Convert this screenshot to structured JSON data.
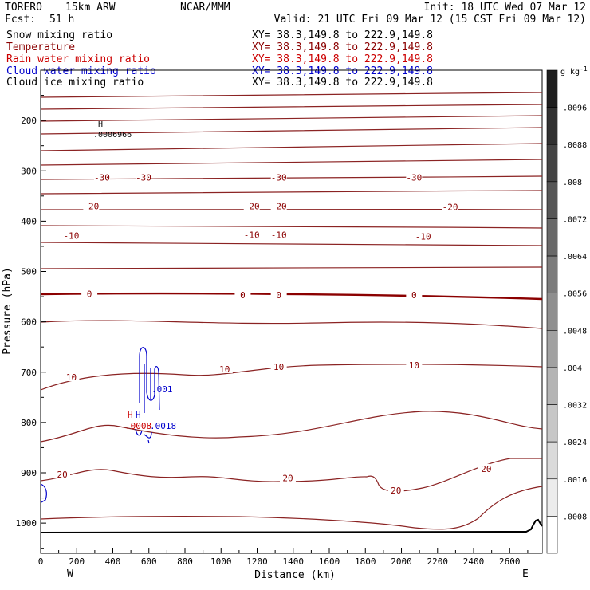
{
  "header": {
    "model": "TORERO",
    "config": "15km ARW",
    "center": "NCAR/MMM",
    "init": "Init: 18 UTC Wed 07 Mar 12",
    "fcst_label": "Fcst:",
    "fcst_value": "51 h",
    "valid": "Valid: 21 UTC Fri 09 Mar 12 (15 CST Fri 09 Mar 12)"
  },
  "fields": [
    {
      "name": "Snow mixing ratio",
      "xy": "XY=  38.3,149.8 to 222.9,149.8",
      "color": "#000000"
    },
    {
      "name": "Temperature",
      "xy": "XY=  38.3,149.8 to 222.9,149.8",
      "color": "#8b0000"
    },
    {
      "name": "Rain water mixing ratio",
      "xy": "XY=  38.3,149.8 to 222.9,149.8",
      "color": "#cc0000"
    },
    {
      "name": "Cloud water mixing ratio",
      "xy": "XY=  38.3,149.8 to 222.9,149.8",
      "color": "#0000cc"
    },
    {
      "name": "Cloud ice mixing ratio",
      "xy": "XY=  38.3,149.8 to 222.9,149.8",
      "color": "#000000"
    }
  ],
  "colorbar": {
    "units": "g kg",
    "units_exp": "-1",
    "labels": [
      ".0096",
      ".0088",
      ".008",
      ".0072",
      ".0064",
      ".0056",
      ".0048",
      ".004",
      ".0032",
      ".0024",
      ".0016",
      ".0008"
    ]
  },
  "annotations": {
    "snow_max_h": "H",
    "snow_max_value": ".0006966",
    "rain_h": "H",
    "rain_value": ".0008",
    "cloud_h": "H",
    "cloud_value": ".0018",
    "cloud_contour_label": ".001",
    "west": "W",
    "east": "E"
  },
  "chart_data": {
    "type": "contour",
    "xlabel": "Distance (km)",
    "ylabel": "Pressure (hPa)",
    "xlim": [
      0,
      2780
    ],
    "ylim": [
      1060,
      100
    ],
    "x_ticks": [
      0,
      200,
      400,
      600,
      800,
      1000,
      1200,
      1400,
      1600,
      1800,
      2000,
      2200,
      2400,
      2600
    ],
    "y_ticks": [
      200,
      300,
      400,
      500,
      600,
      700,
      800,
      900,
      1000
    ],
    "series": [
      {
        "name": "Temperature",
        "contour_labels": [
          "-30",
          "-20",
          "-10",
          "0",
          "10",
          "20"
        ]
      }
    ],
    "temperature_labels": [
      {
        "text": "-30",
        "x": 340,
        "p": 313
      },
      {
        "text": "-30",
        "x": 570,
        "p": 313
      },
      {
        "text": "-30",
        "x": 1320,
        "p": 313
      },
      {
        "text": "-30",
        "x": 2070,
        "p": 313
      },
      {
        "text": "-20",
        "x": 280,
        "p": 370
      },
      {
        "text": "-20",
        "x": 1170,
        "p": 370
      },
      {
        "text": "-20",
        "x": 1320,
        "p": 370
      },
      {
        "text": "-20",
        "x": 2270,
        "p": 372
      },
      {
        "text": "-10",
        "x": 170,
        "p": 429
      },
      {
        "text": "-10",
        "x": 1170,
        "p": 427
      },
      {
        "text": "-10",
        "x": 1320,
        "p": 427
      },
      {
        "text": "-10",
        "x": 2120,
        "p": 430
      },
      {
        "text": "0",
        "x": 270,
        "p": 544
      },
      {
        "text": "0",
        "x": 1120,
        "p": 547
      },
      {
        "text": "0",
        "x": 1320,
        "p": 547
      },
      {
        "text": "0",
        "x": 2070,
        "p": 547
      },
      {
        "text": "10",
        "x": 170,
        "p": 710
      },
      {
        "text": "10",
        "x": 1020,
        "p": 694
      },
      {
        "text": "10",
        "x": 1320,
        "p": 689
      },
      {
        "text": "10",
        "x": 2070,
        "p": 686
      },
      {
        "text": "20",
        "x": 120,
        "p": 903
      },
      {
        "text": "20",
        "x": 1370,
        "p": 910
      },
      {
        "text": "20",
        "x": 1970,
        "p": 935
      },
      {
        "text": "20",
        "x": 2470,
        "p": 892
      }
    ],
    "grid": false
  }
}
